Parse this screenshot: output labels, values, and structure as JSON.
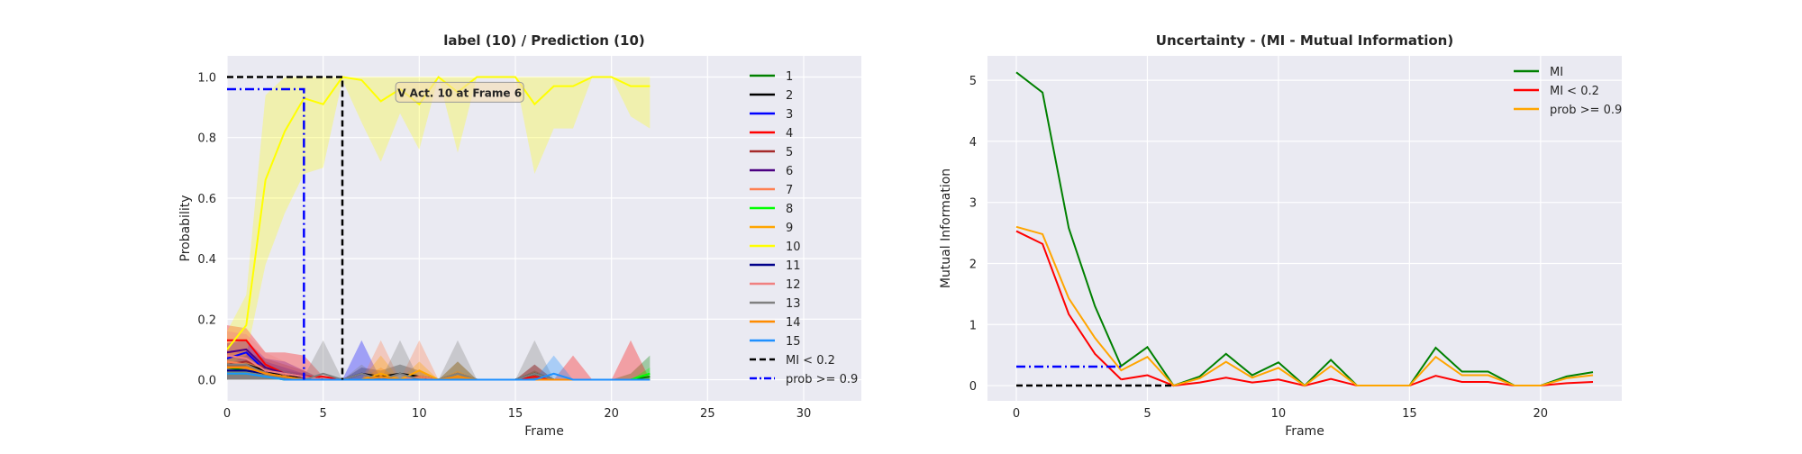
{
  "chart_data": [
    {
      "type": "line",
      "title": "label (10) / Prediction (10)",
      "xlabel": "Frame",
      "ylabel": "Probability",
      "xlim": [
        0,
        33
      ],
      "ylim": [
        -0.07,
        1.07
      ],
      "xticks": [
        0,
        5,
        10,
        15,
        20,
        25,
        30
      ],
      "yticks": [
        0.0,
        0.2,
        0.4,
        0.6,
        0.8,
        1.0
      ],
      "grid": true,
      "legend_position": "upper-right",
      "annotation": {
        "text": "V  Act. 10 at Frame 6",
        "x": 12.1,
        "y": 0.95
      },
      "series": [
        {
          "name": "1",
          "color": "#008000",
          "values": [
            0.04,
            0.03,
            0.02,
            0.01,
            0.0,
            0.0,
            0,
            0,
            0,
            0,
            0,
            0,
            0,
            0,
            0,
            0,
            0.02,
            0.0,
            0,
            0,
            0,
            0.0,
            0.01
          ],
          "band": [
            0.07,
            0.05,
            0.03,
            0.02,
            0.01,
            0,
            0,
            0,
            0,
            0,
            0,
            0,
            0,
            0,
            0,
            0,
            0.03,
            0,
            0,
            0,
            0,
            0.02,
            0.08
          ]
        },
        {
          "name": "2",
          "color": "#000000",
          "values": [
            0.05,
            0.05,
            0.03,
            0.01,
            0.01,
            0.0,
            0,
            0.02,
            0.01,
            0.02,
            0.01,
            0,
            0.02,
            0,
            0,
            0,
            0.02,
            0,
            0,
            0,
            0,
            0,
            0
          ],
          "band": [
            0.08,
            0.08,
            0.05,
            0.03,
            0.02,
            0,
            0,
            0.04,
            0.03,
            0.05,
            0.03,
            0,
            0.06,
            0,
            0,
            0,
            0.05,
            0,
            0,
            0,
            0,
            0,
            0
          ]
        },
        {
          "name": "3",
          "color": "#0000ff",
          "values": [
            0.07,
            0.09,
            0.03,
            0.02,
            0.01,
            0,
            0,
            0.02,
            0,
            0,
            0,
            0,
            0,
            0,
            0,
            0,
            0,
            0,
            0,
            0,
            0,
            0,
            0
          ],
          "band": [
            0.12,
            0.13,
            0.07,
            0.06,
            0.03,
            0,
            0,
            0.13,
            0,
            0,
            0,
            0,
            0,
            0,
            0,
            0,
            0,
            0,
            0,
            0,
            0,
            0,
            0
          ]
        },
        {
          "name": "4",
          "color": "#ff0000",
          "values": [
            0.13,
            0.13,
            0.05,
            0.02,
            0.01,
            0.01,
            0,
            0,
            0,
            0,
            0,
            0,
            0,
            0,
            0,
            0,
            0.01,
            0,
            0,
            0,
            0,
            0,
            0
          ],
          "band": [
            0.18,
            0.17,
            0.09,
            0.09,
            0.08,
            0.01,
            0,
            0,
            0,
            0,
            0,
            0,
            0,
            0,
            0,
            0,
            0.05,
            0,
            0.08,
            0,
            0,
            0.13,
            0
          ]
        },
        {
          "name": "5",
          "color": "#a52a2a",
          "values": [
            0.05,
            0.06,
            0.04,
            0.02,
            0.01,
            0,
            0,
            0,
            0,
            0,
            0,
            0,
            0,
            0,
            0,
            0,
            0,
            0,
            0,
            0,
            0,
            0,
            0
          ],
          "band": [
            0.1,
            0.09,
            0.07,
            0.05,
            0.03,
            0,
            0,
            0,
            0,
            0,
            0,
            0,
            0,
            0,
            0,
            0,
            0,
            0,
            0,
            0,
            0,
            0,
            0
          ]
        },
        {
          "name": "6",
          "color": "#4b0082",
          "values": [
            0.09,
            0.1,
            0.04,
            0.02,
            0.01,
            0,
            0,
            0,
            0,
            0,
            0,
            0,
            0,
            0,
            0,
            0,
            0,
            0,
            0,
            0,
            0,
            0,
            0
          ],
          "band": [
            0.12,
            0.13,
            0.06,
            0.04,
            0.02,
            0,
            0,
            0,
            0,
            0,
            0,
            0,
            0,
            0,
            0,
            0,
            0,
            0,
            0,
            0,
            0,
            0,
            0
          ]
        },
        {
          "name": "7",
          "color": "#ff7f50",
          "values": [
            0.06,
            0.05,
            0.02,
            0.01,
            0,
            0,
            0,
            0,
            0.01,
            0,
            0.01,
            0,
            0,
            0,
            0,
            0,
            0,
            0,
            0,
            0,
            0,
            0,
            0
          ],
          "band": [
            0.1,
            0.08,
            0.04,
            0.02,
            0,
            0,
            0,
            0,
            0.13,
            0,
            0.13,
            0,
            0,
            0,
            0,
            0,
            0,
            0,
            0,
            0,
            0,
            0,
            0
          ]
        },
        {
          "name": "8",
          "color": "#00ff00",
          "values": [
            0.02,
            0.02,
            0.01,
            0.0,
            0,
            0,
            0,
            0,
            0,
            0,
            0,
            0,
            0,
            0,
            0,
            0,
            0,
            0,
            0,
            0,
            0,
            0,
            0.02
          ],
          "band": [
            0.04,
            0.03,
            0.02,
            0.01,
            0,
            0,
            0,
            0,
            0,
            0,
            0,
            0,
            0,
            0,
            0,
            0,
            0,
            0,
            0,
            0,
            0,
            0,
            0.04
          ]
        },
        {
          "name": "9",
          "color": "#ffa500",
          "values": [
            0.04,
            0.04,
            0.02,
            0.01,
            0,
            0,
            0,
            0,
            0.02,
            0,
            0.03,
            0,
            0.02,
            0,
            0,
            0,
            0,
            0,
            0,
            0,
            0,
            0,
            0
          ],
          "band": [
            0.07,
            0.06,
            0.04,
            0.02,
            0,
            0,
            0,
            0,
            0.08,
            0,
            0.06,
            0,
            0.06,
            0,
            0,
            0,
            0,
            0,
            0,
            0,
            0,
            0,
            0
          ]
        },
        {
          "name": "10",
          "color": "#ffff00",
          "values": [
            0.1,
            0.18,
            0.66,
            0.82,
            0.93,
            0.91,
            1.0,
            0.99,
            0.92,
            0.96,
            0.91,
            1.0,
            0.95,
            1.0,
            1.0,
            1.0,
            0.91,
            0.97,
            0.97,
            1.0,
            1.0,
            0.97,
            0.97
          ],
          "lower": [
            0.05,
            0.08,
            0.38,
            0.55,
            0.68,
            0.7,
            0.99,
            0.85,
            0.72,
            0.88,
            0.76,
            1.0,
            0.75,
            1.0,
            1.0,
            1.0,
            0.68,
            0.83,
            0.83,
            1.0,
            1.0,
            0.87,
            0.83
          ],
          "upper": [
            0.16,
            0.28,
            0.94,
            1.0,
            1.0,
            1.0,
            1.0,
            1.0,
            1.0,
            1.0,
            1.0,
            1.0,
            1.0,
            1.0,
            1.0,
            1.0,
            1.0,
            1.0,
            1.0,
            1.0,
            1.0,
            1.0,
            1.0
          ]
        },
        {
          "name": "11",
          "color": "#00008b",
          "values": [
            0.03,
            0.03,
            0.02,
            0.01,
            0,
            0,
            0,
            0,
            0,
            0,
            0,
            0,
            0,
            0,
            0,
            0,
            0,
            0,
            0,
            0,
            0,
            0,
            0
          ],
          "band": [
            0.05,
            0.05,
            0.03,
            0.02,
            0,
            0,
            0,
            0,
            0,
            0,
            0,
            0,
            0,
            0,
            0,
            0,
            0,
            0,
            0,
            0,
            0,
            0,
            0
          ]
        },
        {
          "name": "12",
          "color": "#f08080",
          "values": [
            0.08,
            0.07,
            0.03,
            0.02,
            0.01,
            0,
            0,
            0,
            0,
            0,
            0,
            0,
            0,
            0,
            0,
            0,
            0,
            0,
            0,
            0,
            0,
            0,
            0
          ],
          "band": [
            0.16,
            0.15,
            0.09,
            0.06,
            0.03,
            0,
            0,
            0,
            0,
            0,
            0,
            0,
            0,
            0,
            0,
            0,
            0,
            0,
            0,
            0,
            0,
            0,
            0
          ]
        },
        {
          "name": "13",
          "color": "#808080",
          "values": [
            0.05,
            0.05,
            0.02,
            0.01,
            0.0,
            0.02,
            0,
            0.02,
            0,
            0.02,
            0,
            0,
            0.02,
            0,
            0,
            0,
            0.02,
            0,
            0,
            0,
            0,
            0,
            0
          ],
          "band": [
            0.08,
            0.08,
            0.05,
            0.03,
            0.01,
            0.13,
            0,
            0.05,
            0,
            0.13,
            0,
            0,
            0.13,
            0,
            0,
            0,
            0.13,
            0,
            0,
            0,
            0,
            0,
            0
          ]
        },
        {
          "name": "14",
          "color": "#ff8c00",
          "values": [
            0.04,
            0.04,
            0.02,
            0.01,
            0,
            0,
            0,
            0,
            0.01,
            0,
            0,
            0,
            0.01,
            0,
            0,
            0,
            0,
            0,
            0,
            0,
            0,
            0,
            0
          ],
          "band": [
            0.06,
            0.06,
            0.04,
            0.02,
            0,
            0,
            0,
            0,
            0.04,
            0,
            0,
            0,
            0.03,
            0,
            0,
            0,
            0,
            0,
            0,
            0,
            0,
            0,
            0
          ]
        },
        {
          "name": "15",
          "color": "#1e90ff",
          "values": [
            0.02,
            0.02,
            0.01,
            0.0,
            0,
            0,
            0,
            0,
            0,
            0,
            0,
            0,
            0,
            0,
            0,
            0,
            0,
            0.02,
            0,
            0,
            0,
            0,
            0
          ],
          "band": [
            0.04,
            0.03,
            0.02,
            0.01,
            0,
            0,
            0,
            0,
            0,
            0,
            0,
            0,
            0,
            0,
            0,
            0,
            0,
            0.08,
            0,
            0,
            0,
            0,
            0
          ]
        }
      ],
      "markers": [
        {
          "name": "MI < 0.2",
          "color": "#000000",
          "dash": "dashed",
          "x": 6,
          "level": 1.0
        },
        {
          "name": "prob >= 0.9",
          "color": "#0000ff",
          "dash": "dashdot",
          "x": 4,
          "level": 0.96
        }
      ]
    },
    {
      "type": "line",
      "title": "Uncertainty - (MI - Mutual Information)",
      "xlabel": "Frame",
      "ylabel": "Mutual Information",
      "xlim": [
        -1.1,
        23.1
      ],
      "ylim": [
        -0.25,
        5.4
      ],
      "xticks": [
        0,
        5,
        10,
        15,
        20
      ],
      "yticks": [
        0,
        1,
        2,
        3,
        4,
        5
      ],
      "grid": true,
      "legend_position": "upper-right",
      "series": [
        {
          "name": "MI",
          "color": "#008000",
          "values": [
            5.13,
            4.8,
            2.58,
            1.3,
            0.32,
            0.63,
            0.0,
            0.15,
            0.52,
            0.17,
            0.38,
            0.0,
            0.42,
            0.0,
            0.0,
            0.0,
            0.62,
            0.23,
            0.23,
            0.0,
            0.0,
            0.15,
            0.22
          ]
        },
        {
          "name": "MI < 0.2",
          "color": "#ff0000",
          "values": [
            null,
            null,
            null,
            null,
            0.1,
            0.17,
            0.0,
            0.05,
            0.13,
            0.05,
            0.1,
            0.0,
            0.11,
            0.0,
            0.0,
            0.0,
            0.16,
            0.06,
            0.06,
            0.0,
            0.0,
            0.04,
            0.06
          ],
          "pre_values": [
            2.53,
            2.32,
            1.17,
            0.52,
            0.1
          ]
        },
        {
          "name": "prob >= 0.9",
          "color": "#ffa500",
          "values": [
            2.6,
            2.48,
            1.43,
            0.78,
            0.25,
            0.47,
            0.0,
            0.12,
            0.39,
            0.13,
            0.29,
            0.0,
            0.32,
            0.0,
            0.0,
            0.0,
            0.47,
            0.17,
            0.17,
            0.0,
            0.0,
            0.12,
            0.17
          ]
        }
      ],
      "markers": [
        {
          "color": "#000000",
          "dash": "dashed",
          "x_from": 0,
          "x_to": 6,
          "level": 0.0
        },
        {
          "color": "#0000ff",
          "dash": "dashdot",
          "x_from": 0,
          "x_to": 4,
          "level": 0.31
        }
      ]
    }
  ]
}
